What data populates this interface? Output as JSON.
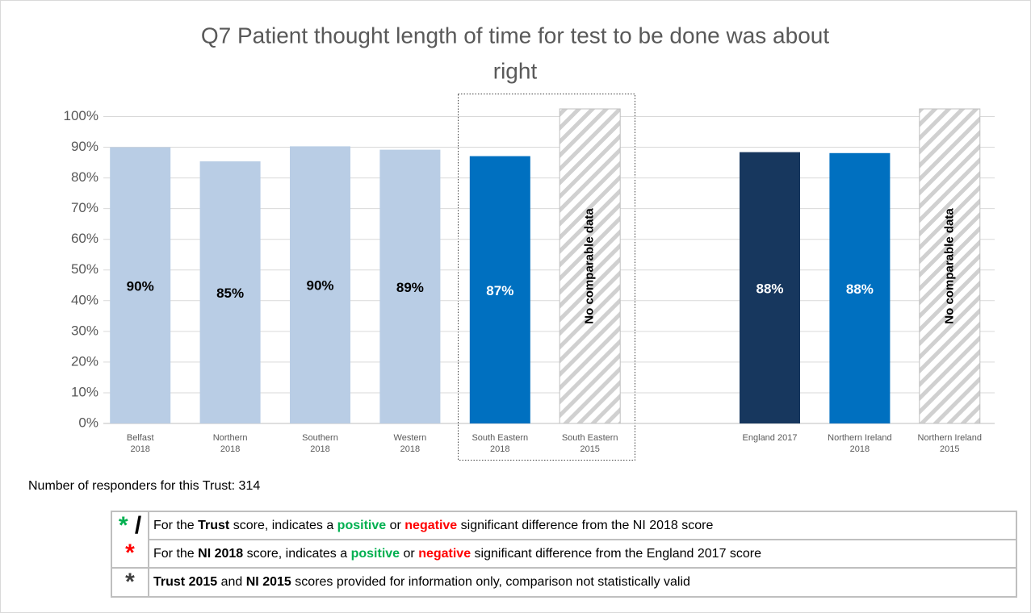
{
  "chart_data": {
    "type": "bar",
    "title": [
      "Q7 Patient thought length of time for test to be done was about",
      "right"
    ],
    "categories": [
      [
        "Belfast",
        "2018"
      ],
      [
        "Northern",
        "2018"
      ],
      [
        "Southern",
        "2018"
      ],
      [
        "Western",
        "2018"
      ],
      [
        "South Eastern",
        "2018"
      ],
      [
        "South Eastern",
        "2015"
      ],
      null,
      [
        "England 2017"
      ],
      [
        "Northern Ireland",
        "2018"
      ],
      [
        "Northern Ireland",
        "2015"
      ]
    ],
    "values": [
      90,
      85.4,
      90.3,
      89.2,
      87.1,
      null,
      null,
      88.4,
      88.1,
      null
    ],
    "value_labels": [
      "90%",
      "85%",
      "90%",
      "89%",
      "87%",
      null,
      null,
      "88%",
      "88%",
      null
    ],
    "no_data": [
      false,
      false,
      false,
      false,
      false,
      true,
      false,
      false,
      false,
      true
    ],
    "no_data_label": "No comparable data",
    "colors": [
      "#b9cde5",
      "#b9cde5",
      "#b9cde5",
      "#b9cde5",
      "#0070c0",
      null,
      null,
      "#17375e",
      "#0070c0",
      null
    ],
    "label_colors": [
      "#000000",
      "#000000",
      "#000000",
      "#000000",
      "#ffffff",
      null,
      null,
      "#ffffff",
      "#ffffff",
      null
    ],
    "ylim": [
      0,
      102.5
    ],
    "yticks": [
      {
        "value": 0,
        "label": "0%"
      },
      {
        "value": 10,
        "label": "10%"
      },
      {
        "value": 20,
        "label": "20%"
      },
      {
        "value": 30,
        "label": "30%"
      },
      {
        "value": 40,
        "label": "40%"
      },
      {
        "value": 50,
        "label": "50%"
      },
      {
        "value": 60,
        "label": "60%"
      },
      {
        "value": 70,
        "label": "70%"
      },
      {
        "value": 80,
        "label": "80%"
      },
      {
        "value": 90,
        "label": "90%"
      },
      {
        "value": 100,
        "label": "100%"
      }
    ],
    "grid": true
  },
  "responders": "Number of responders for this Trust: 314",
  "legend_table": {
    "symbol_1": [
      "*",
      "/",
      "*"
    ],
    "row_1": [
      "For the ",
      "Trust",
      " score, indicates a ",
      "positive",
      " or ",
      "negative",
      " significant difference from the NI 2018 score"
    ],
    "row_2": [
      "For the ",
      "NI 2018",
      " score, indicates a ",
      "positive",
      " or ",
      "negative",
      " significant difference from the England 2017 score"
    ],
    "symbol_2": "*",
    "row_3": [
      "Trust 2015",
      " and  ",
      "NI 2015",
      " scores provided for information only, comparison not statistically valid"
    ]
  }
}
